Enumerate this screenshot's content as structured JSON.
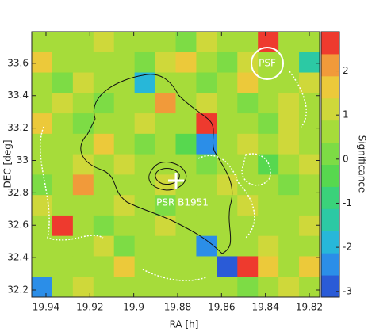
{
  "chart_data": {
    "type": "heatmap",
    "xlabel": "RA [h]",
    "ylabel": "DEC [deg]",
    "colorbar_label": "Significance",
    "annotations": [
      "PSF",
      "PSR B1951"
    ],
    "xlim": [
      19.9465,
      19.8153
    ],
    "ylim": [
      32.156,
      33.795
    ],
    "xticks": [
      19.94,
      19.92,
      19.9,
      19.88,
      19.86,
      19.84,
      19.82
    ],
    "yticks": [
      32.2,
      32.4,
      32.6,
      32.8,
      33,
      33.2,
      33.4,
      33.6
    ],
    "zlim": [
      -3.13,
      2.89
    ],
    "zticks": [
      -3,
      -2,
      -1,
      0,
      1,
      2
    ],
    "colorscale": [
      "#2a5bd7",
      "#2b8ee8",
      "#27b7d9",
      "#2cc9a4",
      "#3ad27a",
      "#57d84f",
      "#7ddc45",
      "#a6dc3a",
      "#cfd83a",
      "#ecc93a",
      "#f19a3a",
      "#ee3a2e"
    ],
    "z": [
      [
        0.8,
        0.5,
        0.6,
        1.2,
        0.4,
        0.7,
        0.5,
        0.3,
        0.9,
        0.6,
        0.5,
        2.6,
        0.7,
        0.8
      ],
      [
        1.5,
        0.7,
        0.4,
        0.6,
        0.8,
        0.3,
        1.0,
        1.5,
        0.6,
        0.2,
        0.9,
        0.5,
        0.7,
        -1.5
      ],
      [
        0.6,
        0.3,
        0.9,
        0.5,
        0.7,
        -2.0,
        0.6,
        0.4,
        0.2,
        0.8,
        1.4,
        0.6,
        0.4,
        1.2
      ],
      [
        0.4,
        1.0,
        0.6,
        0.3,
        0.8,
        0.5,
        2.3,
        0.7,
        0.9,
        0.5,
        0.3,
        0.8,
        1.2,
        0.6
      ],
      [
        1.8,
        0.6,
        0.2,
        0.7,
        0.5,
        0.9,
        0.4,
        0.6,
        2.4,
        0.8,
        0.6,
        0.3,
        0.9,
        0.5
      ],
      [
        0.5,
        0.8,
        0.6,
        1.7,
        0.4,
        0.3,
        0.7,
        -0.3,
        -2.5,
        0.6,
        0.9,
        0.5,
        1.0,
        0.7
      ],
      [
        0.7,
        0.4,
        1.2,
        0.6,
        0.9,
        0.6,
        0.5,
        0.8,
        0.3,
        0.7,
        0.4,
        -0.5,
        0.6,
        0.9
      ],
      [
        0.3,
        0.6,
        1.9,
        0.8,
        0.5,
        0.7,
        0.9,
        0.4,
        0.6,
        1.1,
        0.5,
        0.7,
        0.3,
        0.6
      ],
      [
        0.9,
        0.5,
        0.4,
        0.6,
        1.3,
        0.8,
        0.3,
        0.7,
        0.5,
        0.6,
        1.2,
        0.4,
        0.8,
        0.5
      ],
      [
        0.6,
        2.5,
        0.7,
        0.3,
        0.6,
        0.5,
        0.9,
        0.6,
        0.4,
        0.8,
        0.7,
        0.5,
        0.6,
        1.0
      ],
      [
        0.4,
        0.7,
        0.5,
        0.9,
        0.3,
        0.6,
        0.8,
        0.5,
        -2.3,
        0.6,
        0.4,
        0.9,
        0.5,
        0.7
      ],
      [
        0.7,
        0.5,
        0.6,
        0.4,
        1.8,
        0.7,
        0.5,
        0.8,
        0.6,
        -2.8,
        2.6,
        1.8,
        0.4,
        1.4
      ],
      [
        -2.6,
        0.6,
        0.9,
        0.5,
        0.7,
        0.4,
        0.6,
        0.8,
        0.5,
        0.6,
        0.3,
        0.7,
        0.9,
        0.5
      ]
    ]
  }
}
